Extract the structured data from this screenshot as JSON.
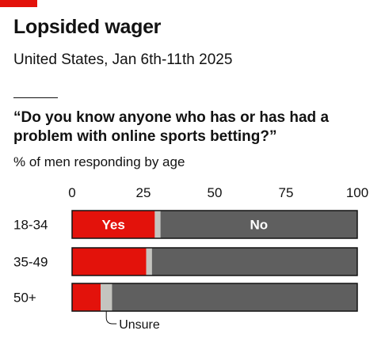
{
  "header": {
    "title": "Lopsided wager",
    "subtitle": "United States, Jan 6th-11th 2025"
  },
  "colors": {
    "accent": "#e3120b",
    "yes": "#e3120b",
    "unsure": "#c4c4bf",
    "no": "#5f5f5f",
    "outline": "#121212"
  },
  "chart_data": {
    "type": "bar",
    "orientation": "horizontal",
    "stacked": true,
    "title": "“Do you know anyone who has or has had a problem with online sports betting?”",
    "xlabel": "% of men responding by age",
    "xlim": [
      0,
      100
    ],
    "xticks": [
      0,
      25,
      50,
      75,
      100
    ],
    "categories": [
      "18-34",
      "35-49",
      "50+"
    ],
    "series": [
      {
        "name": "Yes",
        "values": [
          29,
          26,
          10
        ]
      },
      {
        "name": "Unsure",
        "values": [
          2,
          2,
          4
        ]
      },
      {
        "name": "No",
        "values": [
          69,
          72,
          86
        ]
      }
    ],
    "annotation": "Unsure",
    "grid": false
  }
}
